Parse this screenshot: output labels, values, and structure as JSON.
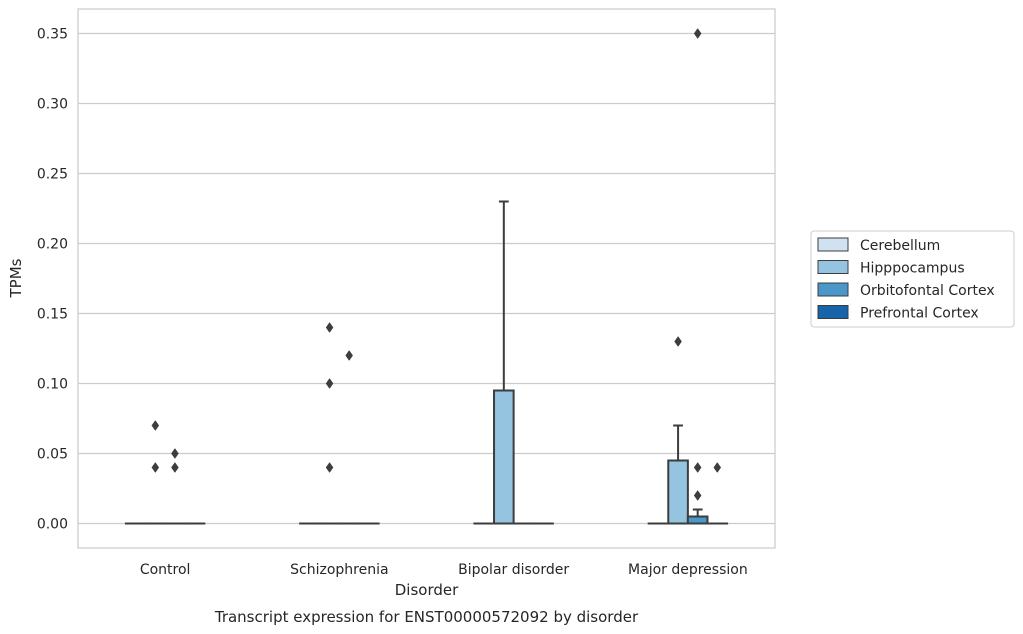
{
  "chart_data": {
    "type": "box",
    "title": "",
    "caption": "Transcript expression for ENST00000572092 by disorder",
    "xlabel": "Disorder",
    "ylabel": "TPMs",
    "ylim": [
      -0.0175,
      0.3675
    ],
    "yticks": [
      0.0,
      0.05,
      0.1,
      0.15,
      0.2,
      0.25,
      0.3,
      0.35
    ],
    "ytick_labels": [
      "0.00",
      "0.05",
      "0.10",
      "0.15",
      "0.20",
      "0.25",
      "0.30",
      "0.35"
    ],
    "categories": [
      "Control",
      "Schizophrenia",
      "Bipolar disorder",
      "Major depression"
    ],
    "grid": true,
    "legend_position": "right",
    "series": [
      {
        "name": "Cerebellum",
        "color": "#d0e1f2",
        "boxes": [
          {
            "category": "Control",
            "q1": 0,
            "median": 0,
            "q3": 0,
            "whisker_low": 0,
            "whisker_high": 0,
            "outliers": []
          },
          {
            "category": "Schizophrenia",
            "q1": 0,
            "median": 0,
            "q3": 0,
            "whisker_low": 0,
            "whisker_high": 0,
            "outliers": []
          },
          {
            "category": "Bipolar disorder",
            "q1": 0,
            "median": 0,
            "q3": 0,
            "whisker_low": 0,
            "whisker_high": 0,
            "outliers": []
          },
          {
            "category": "Major depression",
            "q1": 0,
            "median": 0,
            "q3": 0,
            "whisker_low": 0,
            "whisker_high": 0,
            "outliers": []
          }
        ]
      },
      {
        "name": "Hipppocampus",
        "color": "#94c4df",
        "boxes": [
          {
            "category": "Control",
            "q1": 0,
            "median": 0,
            "q3": 0,
            "whisker_low": 0,
            "whisker_high": 0,
            "outliers": [
              0.07,
              0.04
            ]
          },
          {
            "category": "Schizophrenia",
            "q1": 0,
            "median": 0,
            "q3": 0,
            "whisker_low": 0,
            "whisker_high": 0,
            "outliers": [
              0.14,
              0.1,
              0.04
            ]
          },
          {
            "category": "Bipolar disorder",
            "q1": 0,
            "median": 0,
            "q3": 0.095,
            "whisker_low": 0,
            "whisker_high": 0.23,
            "outliers": []
          },
          {
            "category": "Major depression",
            "q1": 0,
            "median": 0,
            "q3": 0.045,
            "whisker_low": 0,
            "whisker_high": 0.07,
            "outliers": [
              0.13
            ]
          }
        ]
      },
      {
        "name": "Orbitofontal Cortex",
        "color": "#4a98c9",
        "boxes": [
          {
            "category": "Control",
            "q1": 0,
            "median": 0,
            "q3": 0,
            "whisker_low": 0,
            "whisker_high": 0,
            "outliers": [
              0.05,
              0.04
            ]
          },
          {
            "category": "Schizophrenia",
            "q1": 0,
            "median": 0,
            "q3": 0,
            "whisker_low": 0,
            "whisker_high": 0,
            "outliers": [
              0.12
            ]
          },
          {
            "category": "Bipolar disorder",
            "q1": 0,
            "median": 0,
            "q3": 0,
            "whisker_low": 0,
            "whisker_high": 0,
            "outliers": []
          },
          {
            "category": "Major depression",
            "q1": 0,
            "median": 0,
            "q3": 0.005,
            "whisker_low": 0,
            "whisker_high": 0.01,
            "outliers": [
              0.35,
              0.04,
              0.02
            ]
          }
        ]
      },
      {
        "name": "Prefrontal Cortex",
        "color": "#1764ab",
        "boxes": [
          {
            "category": "Control",
            "q1": 0,
            "median": 0,
            "q3": 0,
            "whisker_low": 0,
            "whisker_high": 0,
            "outliers": []
          },
          {
            "category": "Schizophrenia",
            "q1": 0,
            "median": 0,
            "q3": 0,
            "whisker_low": 0,
            "whisker_high": 0,
            "outliers": []
          },
          {
            "category": "Bipolar disorder",
            "q1": 0,
            "median": 0,
            "q3": 0,
            "whisker_low": 0,
            "whisker_high": 0,
            "outliers": []
          },
          {
            "category": "Major depression",
            "q1": 0,
            "median": 0,
            "q3": 0,
            "whisker_low": 0,
            "whisker_high": 0,
            "outliers": [
              0.04
            ]
          }
        ]
      }
    ]
  }
}
